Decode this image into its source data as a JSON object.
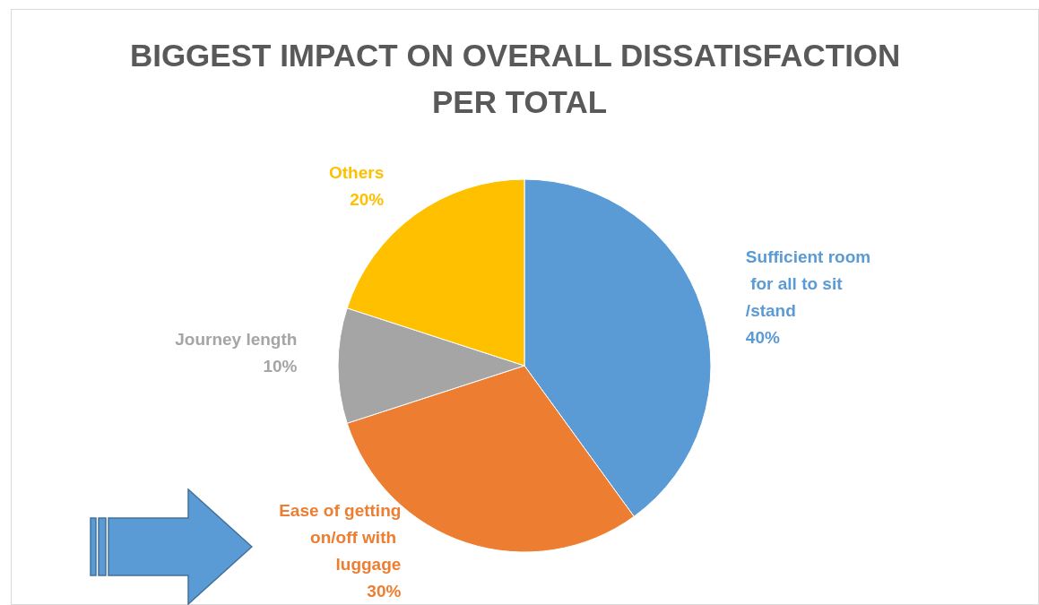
{
  "chart_data": {
    "type": "pie",
    "title": "BIGGEST IMPACT ON OVERALL DISSATISFACTION PER TOTAL",
    "categories": [
      "Sufficient room for all to sit/stand",
      "Ease of getting on/off with luggage",
      "Journey length",
      "Others"
    ],
    "values": [
      40,
      30,
      10,
      20
    ],
    "colors": [
      "#5b9bd5",
      "#ed7d31",
      "#a5a5a5",
      "#ffc000"
    ],
    "value_labels": [
      "40%",
      "30%",
      "10%",
      "20%"
    ],
    "legend": false
  }
}
